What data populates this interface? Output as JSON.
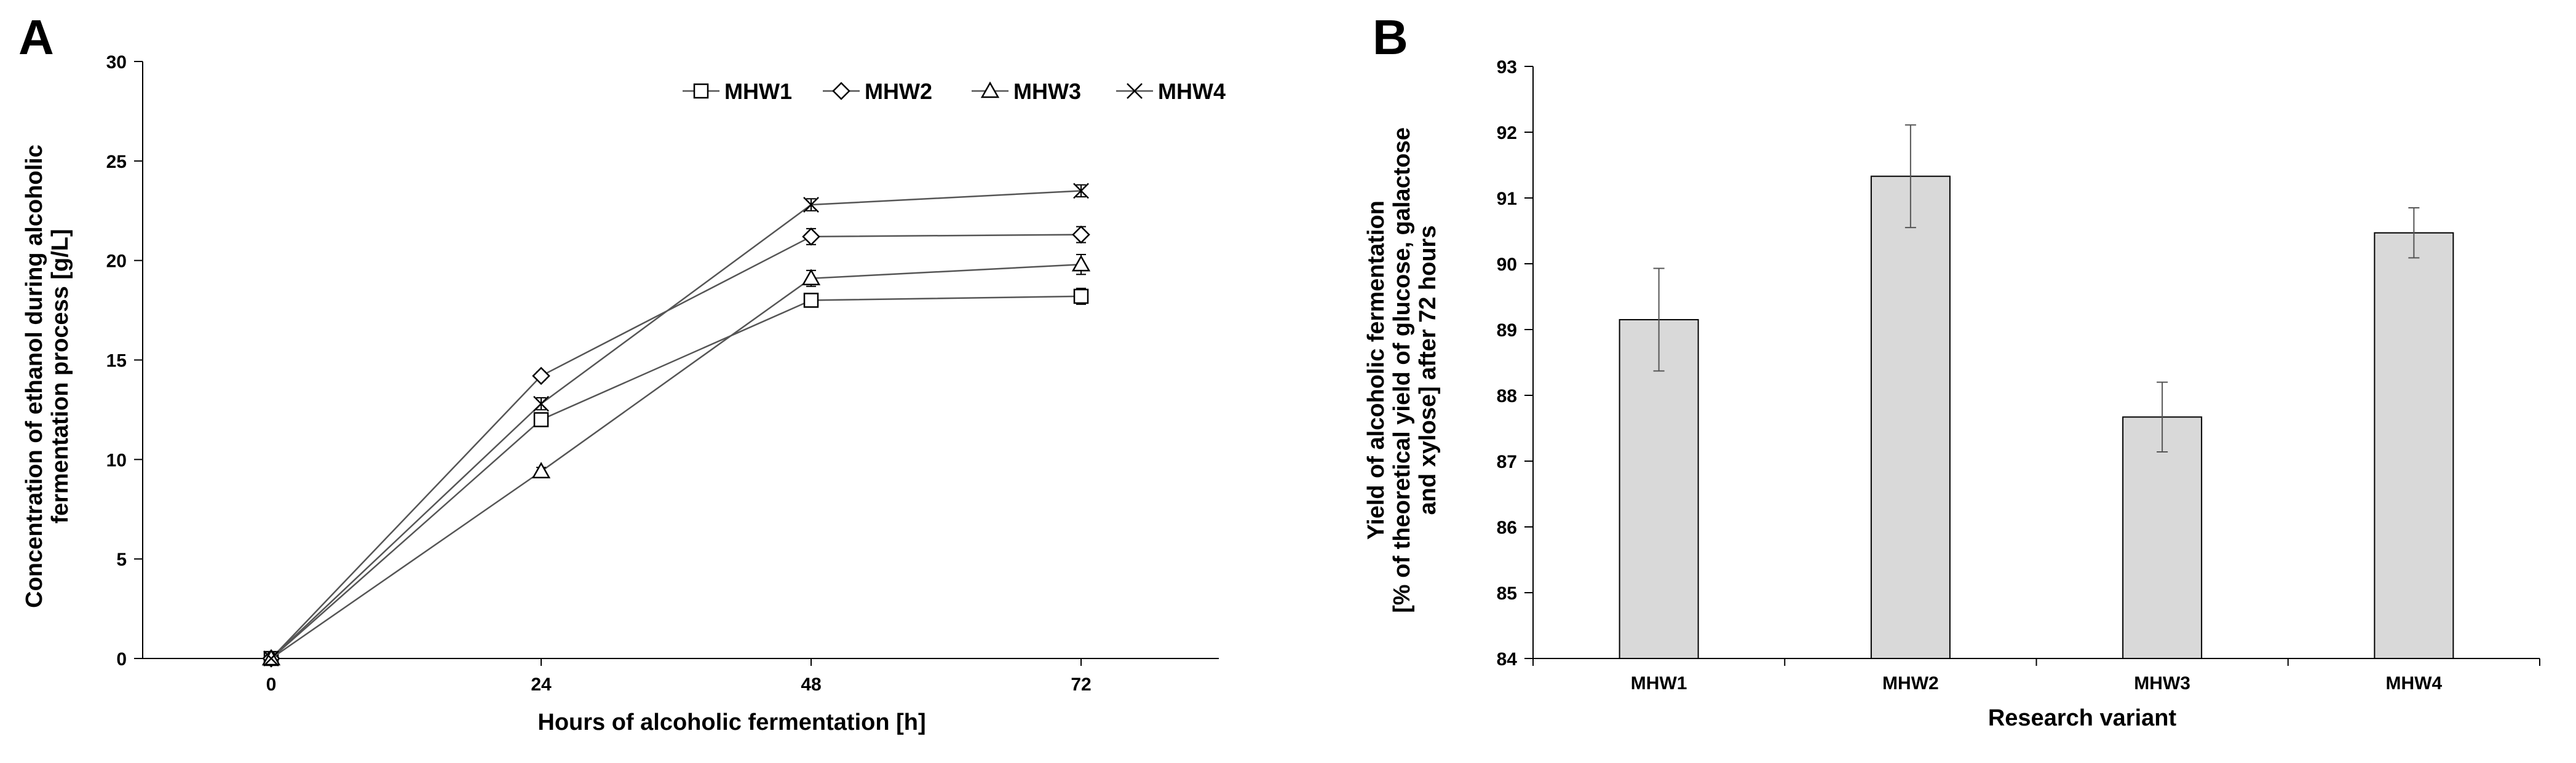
{
  "chart_data": [
    {
      "panel_label": "A",
      "type": "line",
      "x": [
        0,
        24,
        48,
        72
      ],
      "xlabel": "Hours of alcoholic fermentation [h]",
      "ylabel_lines": [
        "Concentration of ethanol during alcoholic",
        "fermentation process [g/L]"
      ],
      "ylim": [
        0,
        30
      ],
      "yticks": [
        0,
        5,
        10,
        15,
        20,
        25,
        30
      ],
      "legend_position": "top-right",
      "series": [
        {
          "name": "MHW1",
          "marker": "square",
          "values": [
            0,
            12.0,
            18.0,
            18.2
          ],
          "errors": [
            0,
            0.3,
            0.2,
            0.4
          ]
        },
        {
          "name": "MHW2",
          "marker": "diamond",
          "values": [
            0,
            14.2,
            21.2,
            21.3
          ],
          "errors": [
            0,
            0.2,
            0.4,
            0.4
          ]
        },
        {
          "name": "MHW3",
          "marker": "triangle",
          "values": [
            0,
            9.4,
            19.1,
            19.8
          ],
          "errors": [
            0,
            0.2,
            0.4,
            0.5
          ]
        },
        {
          "name": "MHW4",
          "marker": "x",
          "values": [
            0,
            12.8,
            22.8,
            23.5
          ],
          "errors": [
            0,
            0.3,
            0.3,
            0.3
          ]
        }
      ]
    },
    {
      "panel_label": "B",
      "type": "bar",
      "categories": [
        "MHW1",
        "MHW2",
        "MHW3",
        "MHW4"
      ],
      "values": [
        89.15,
        91.33,
        87.67,
        90.47
      ],
      "errors": [
        0.78,
        0.78,
        0.53,
        0.38
      ],
      "xlabel": "Research variant",
      "ylabel_lines": [
        "Yield of alcoholic fermentation",
        "[% of theoretical yield of glucose, galactose",
        "and xylose] after 72 hours"
      ],
      "ylim": [
        84,
        93
      ],
      "yticks": [
        84,
        85,
        86,
        87,
        88,
        89,
        90,
        91,
        92,
        93
      ],
      "colors": {
        "bar_fill": "#d9d9d9",
        "bar_stroke": "#000000"
      }
    }
  ]
}
